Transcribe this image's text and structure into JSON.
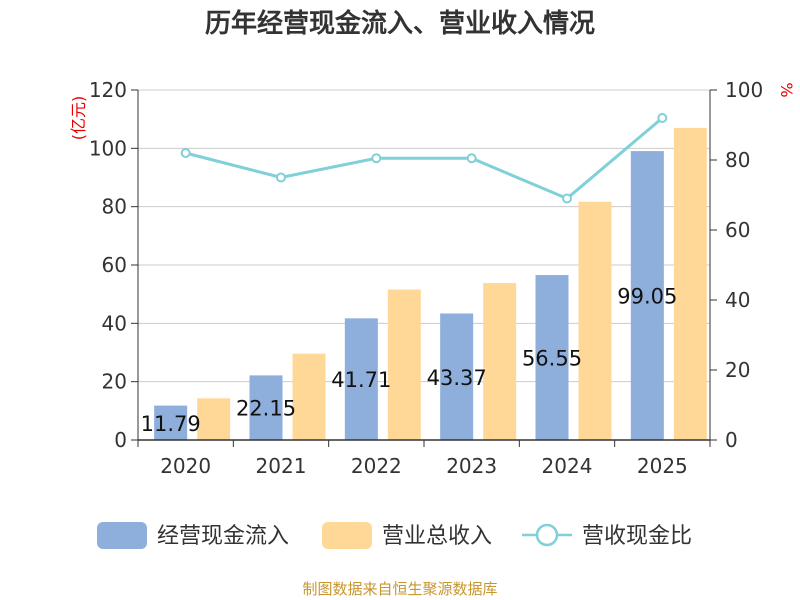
{
  "chart_data": {
    "type": "bar",
    "title": "历年经营现金流入、营业收入情况",
    "categories": [
      "2020",
      "2021",
      "2022",
      "2023",
      "2024",
      "2025"
    ],
    "series": [
      {
        "name": "经营现金流入",
        "axis": "left",
        "color": "#8eaedb",
        "values": [
          11.79,
          22.15,
          41.71,
          43.37,
          56.55,
          99.05
        ],
        "data_labels": [
          "11.79",
          "22.15",
          "41.71",
          "43.37",
          "56.55",
          "99.05"
        ]
      },
      {
        "name": "营业总收入",
        "axis": "left",
        "color": "#ffd898",
        "values": [
          14.3,
          29.6,
          51.6,
          53.8,
          81.7,
          107.0
        ]
      },
      {
        "name": "营收现金比",
        "axis": "right",
        "type": "line",
        "color": "#7fd0d8",
        "values": [
          82,
          75,
          80.5,
          80.5,
          69,
          92
        ]
      }
    ],
    "ylabel_left": "(亿元)",
    "ylabel_right": "%",
    "ylim_left": [
      0,
      120
    ],
    "yticks_left": [
      0,
      20,
      40,
      60,
      80,
      100,
      120
    ],
    "ylim_right": [
      0,
      100
    ],
    "yticks_right": [
      0,
      20,
      40,
      60,
      80,
      100
    ],
    "legend_position": "bottom",
    "grid": true
  },
  "source_text": "制图数据来自恒生聚源数据库"
}
